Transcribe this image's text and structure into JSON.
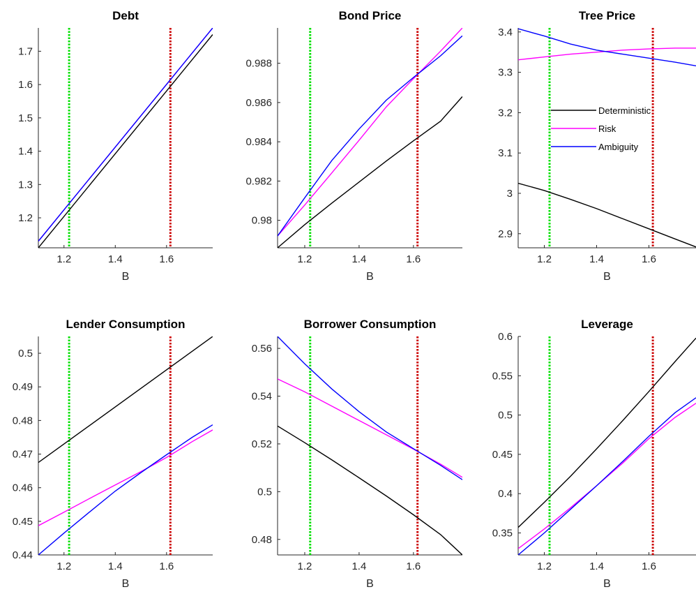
{
  "colors": {
    "deterministic": "#000000",
    "risk": "#ff00ff",
    "ambiguity": "#0000ff",
    "vline_green": "#00e000",
    "vline_red": "#cc0000"
  },
  "chart_data": [
    {
      "type": "line",
      "title": "Debt",
      "xlabel": "B",
      "ylabel": "",
      "xlim": [
        1.1,
        1.78
      ],
      "ylim": [
        1.11,
        1.77
      ],
      "xticks": [
        1.2,
        1.4,
        1.6
      ],
      "xtick_labels": [
        "1.2",
        "1.4",
        "1.6"
      ],
      "yticks": [
        1.2,
        1.3,
        1.4,
        1.5,
        1.6,
        1.7
      ],
      "ytick_labels": [
        "1.2",
        "1.3",
        "1.4",
        "1.5",
        "1.6",
        "1.7"
      ],
      "vlines": [
        1.22,
        1.615
      ],
      "series": [
        {
          "key": "deterministic",
          "x": [
            1.1,
            1.78
          ],
          "y": [
            1.11,
            1.75
          ]
        },
        {
          "key": "risk",
          "x": [
            1.1,
            1.78
          ],
          "y": [
            1.13,
            1.77
          ]
        },
        {
          "key": "ambiguity",
          "x": [
            1.1,
            1.78
          ],
          "y": [
            1.13,
            1.77
          ]
        }
      ]
    },
    {
      "type": "line",
      "title": "Bond Price",
      "xlabel": "B",
      "ylabel": "",
      "xlim": [
        1.1,
        1.78
      ],
      "ylim": [
        0.9786,
        0.9898
      ],
      "xticks": [
        1.2,
        1.4,
        1.6
      ],
      "xtick_labels": [
        "1.2",
        "1.4",
        "1.6"
      ],
      "yticks": [
        0.98,
        0.982,
        0.984,
        0.986,
        0.988
      ],
      "ytick_labels": [
        "0.98",
        "0.982",
        "0.984",
        "0.986",
        "0.988"
      ],
      "vlines": [
        1.22,
        1.615
      ],
      "series": [
        {
          "key": "deterministic",
          "x": [
            1.1,
            1.2,
            1.3,
            1.4,
            1.5,
            1.6,
            1.7,
            1.78
          ],
          "y": [
            0.9786,
            0.97978,
            0.98088,
            0.98195,
            0.98302,
            0.98405,
            0.98505,
            0.9863
          ]
        },
        {
          "key": "risk",
          "x": [
            1.1,
            1.2,
            1.3,
            1.4,
            1.5,
            1.6,
            1.7,
            1.78
          ],
          "y": [
            0.9792,
            0.98078,
            0.98242,
            0.98408,
            0.98578,
            0.98722,
            0.98862,
            0.9898
          ]
        },
        {
          "key": "ambiguity",
          "x": [
            1.1,
            1.2,
            1.3,
            1.4,
            1.5,
            1.6,
            1.7,
            1.78
          ],
          "y": [
            0.9792,
            0.98115,
            0.98305,
            0.98465,
            0.98612,
            0.98728,
            0.98838,
            0.9894
          ]
        }
      ]
    },
    {
      "type": "line",
      "title": "Tree Price",
      "xlabel": "B",
      "ylabel": "",
      "xlim": [
        1.1,
        1.78
      ],
      "ylim": [
        2.865,
        3.41
      ],
      "xticks": [
        1.2,
        1.4,
        1.6
      ],
      "xtick_labels": [
        "1.2",
        "1.4",
        "1.6"
      ],
      "yticks": [
        2.9,
        3.0,
        3.1,
        3.2,
        3.3,
        3.4
      ],
      "ytick_labels": [
        "2.9",
        "3",
        "3.1",
        "3.2",
        "3.3",
        "3.4"
      ],
      "vlines": [
        1.22,
        1.615
      ],
      "legend": {
        "placement": "center-right",
        "entries": [
          {
            "key": "deterministic",
            "label": "Deterministic"
          },
          {
            "key": "risk",
            "label": "Risk"
          },
          {
            "key": "ambiguity",
            "label": "Ambiguity"
          }
        ]
      },
      "series": [
        {
          "key": "deterministic",
          "x": [
            1.1,
            1.2,
            1.3,
            1.4,
            1.5,
            1.6,
            1.7,
            1.78
          ],
          "y": [
            3.025,
            3.007,
            2.985,
            2.962,
            2.937,
            2.912,
            2.887,
            2.867
          ]
        },
        {
          "key": "risk",
          "x": [
            1.1,
            1.2,
            1.3,
            1.4,
            1.5,
            1.6,
            1.7,
            1.78
          ],
          "y": [
            3.331,
            3.338,
            3.345,
            3.35,
            3.355,
            3.358,
            3.36,
            3.36
          ]
        },
        {
          "key": "ambiguity",
          "x": [
            1.1,
            1.2,
            1.3,
            1.4,
            1.5,
            1.6,
            1.7,
            1.78
          ],
          "y": [
            3.408,
            3.39,
            3.37,
            3.355,
            3.345,
            3.335,
            3.325,
            3.316
          ]
        }
      ]
    },
    {
      "type": "line",
      "title": "Lender Consumption",
      "xlabel": "B",
      "ylabel": "",
      "xlim": [
        1.1,
        1.78
      ],
      "ylim": [
        0.44,
        0.505
      ],
      "xticks": [
        1.2,
        1.4,
        1.6
      ],
      "xtick_labels": [
        "1.2",
        "1.4",
        "1.6"
      ],
      "yticks": [
        0.44,
        0.45,
        0.46,
        0.47,
        0.48,
        0.49,
        0.5
      ],
      "ytick_labels": [
        "0.44",
        "0.45",
        "0.46",
        "0.47",
        "0.48",
        "0.49",
        "0.5"
      ],
      "vlines": [
        1.22,
        1.615
      ],
      "series": [
        {
          "key": "deterministic",
          "x": [
            1.1,
            1.78
          ],
          "y": [
            0.4675,
            0.505
          ]
        },
        {
          "key": "risk",
          "x": [
            1.1,
            1.2,
            1.3,
            1.4,
            1.5,
            1.6,
            1.7,
            1.78
          ],
          "y": [
            0.4487,
            0.4527,
            0.4568,
            0.4608,
            0.4648,
            0.469,
            0.4737,
            0.4772
          ]
        },
        {
          "key": "ambiguity",
          "x": [
            1.1,
            1.2,
            1.3,
            1.4,
            1.5,
            1.6,
            1.7,
            1.78
          ],
          "y": [
            0.44,
            0.4465,
            0.4528,
            0.459,
            0.4645,
            0.4698,
            0.475,
            0.4787
          ]
        }
      ]
    },
    {
      "type": "line",
      "title": "Borrower Consumption",
      "xlabel": "B",
      "ylabel": "",
      "xlim": [
        1.1,
        1.78
      ],
      "ylim": [
        0.4735,
        0.565
      ],
      "xticks": [
        1.2,
        1.4,
        1.6
      ],
      "xtick_labels": [
        "1.2",
        "1.4",
        "1.6"
      ],
      "yticks": [
        0.48,
        0.5,
        0.52,
        0.54,
        0.56
      ],
      "ytick_labels": [
        "0.48",
        "0.5",
        "0.52",
        "0.54",
        "0.56"
      ],
      "vlines": [
        1.22,
        1.615
      ],
      "series": [
        {
          "key": "deterministic",
          "x": [
            1.1,
            1.2,
            1.3,
            1.4,
            1.5,
            1.6,
            1.7,
            1.78
          ],
          "y": [
            0.5275,
            0.5205,
            0.5133,
            0.5058,
            0.4982,
            0.4903,
            0.482,
            0.4735
          ]
        },
        {
          "key": "risk",
          "x": [
            1.1,
            1.2,
            1.3,
            1.4,
            1.5,
            1.6,
            1.7,
            1.78
          ],
          "y": [
            0.5472,
            0.5418,
            0.5358,
            0.5298,
            0.5238,
            0.5178,
            0.5115,
            0.506
          ]
        },
        {
          "key": "ambiguity",
          "x": [
            1.1,
            1.2,
            1.3,
            1.4,
            1.5,
            1.6,
            1.7,
            1.78
          ],
          "y": [
            0.565,
            0.5535,
            0.543,
            0.5335,
            0.525,
            0.518,
            0.511,
            0.505
          ]
        }
      ]
    },
    {
      "type": "line",
      "title": "Leverage",
      "xlabel": "B",
      "ylabel": "",
      "xlim": [
        1.1,
        1.78
      ],
      "ylim": [
        0.322,
        0.6
      ],
      "xticks": [
        1.2,
        1.4,
        1.6
      ],
      "xtick_labels": [
        "1.2",
        "1.4",
        "1.6"
      ],
      "yticks": [
        0.35,
        0.4,
        0.45,
        0.5,
        0.55,
        0.6
      ],
      "ytick_labels": [
        "0.35",
        "0.4",
        "0.45",
        "0.5",
        "0.55",
        "0.6"
      ],
      "vlines": [
        1.22,
        1.615
      ],
      "series": [
        {
          "key": "deterministic",
          "x": [
            1.1,
            1.2,
            1.3,
            1.4,
            1.5,
            1.6,
            1.7,
            1.78
          ],
          "y": [
            0.357,
            0.389,
            0.422,
            0.457,
            0.493,
            0.53,
            0.568,
            0.598
          ]
        },
        {
          "key": "risk",
          "x": [
            1.1,
            1.2,
            1.3,
            1.4,
            1.5,
            1.6,
            1.7,
            1.78
          ],
          "y": [
            0.33,
            0.355,
            0.382,
            0.41,
            0.439,
            0.47,
            0.497,
            0.515
          ]
        },
        {
          "key": "ambiguity",
          "x": [
            1.1,
            1.2,
            1.3,
            1.4,
            1.5,
            1.6,
            1.7,
            1.78
          ],
          "y": [
            0.322,
            0.35,
            0.38,
            0.41,
            0.441,
            0.473,
            0.503,
            0.522
          ]
        }
      ]
    }
  ]
}
